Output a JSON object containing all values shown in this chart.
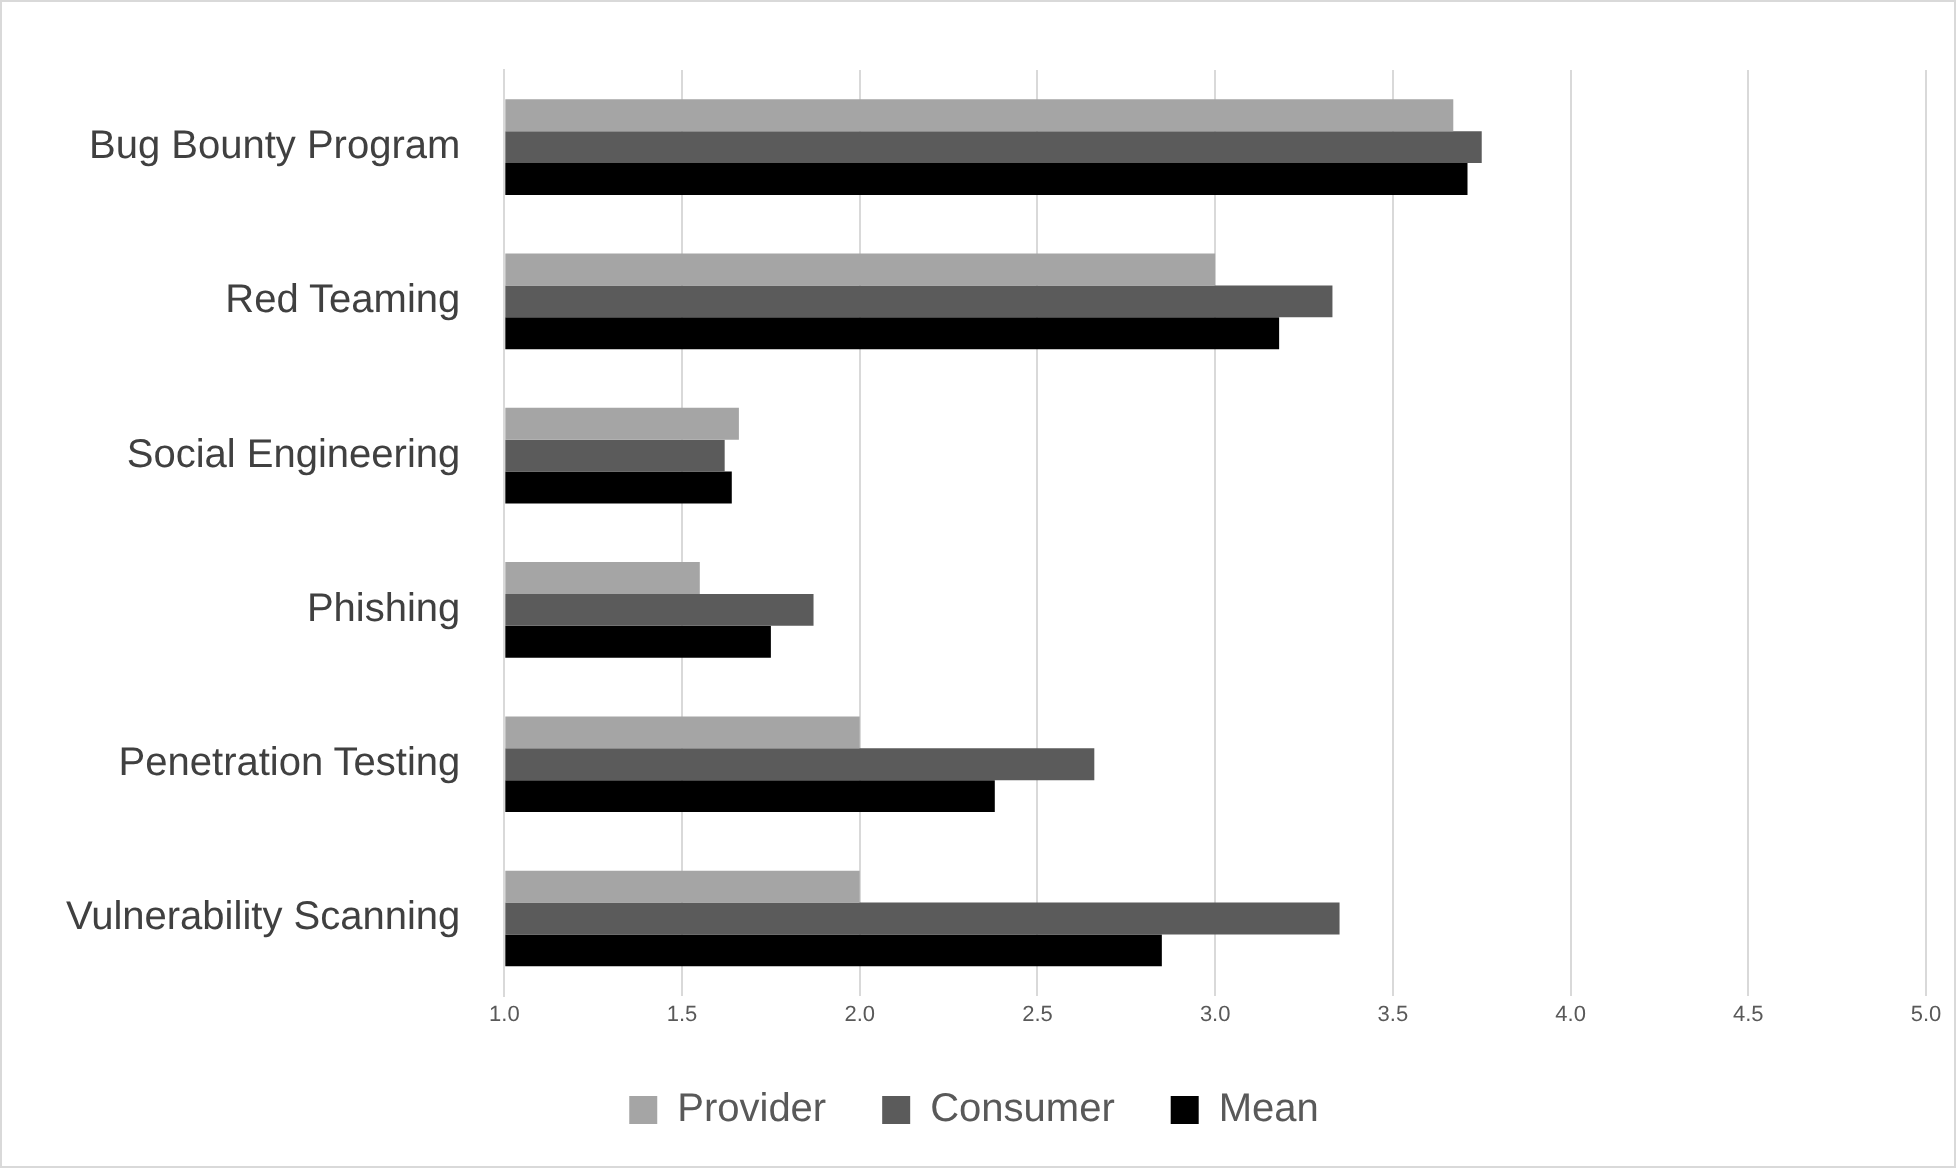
{
  "chart_data": {
    "type": "bar",
    "orientation": "horizontal",
    "categories": [
      "Bug Bounty Program",
      "Red Teaming",
      "Social Engineering",
      "Phishing",
      "Penetration Testing",
      "Vulnerability Scanning"
    ],
    "series": [
      {
        "name": "Provider",
        "color": "#a5a5a5",
        "values": [
          3.67,
          3.0,
          1.66,
          1.55,
          2.0,
          2.0
        ]
      },
      {
        "name": "Consumer",
        "color": "#5b5b5b",
        "values": [
          3.75,
          3.33,
          1.62,
          1.87,
          2.66,
          3.35
        ]
      },
      {
        "name": "Mean",
        "color": "#000000",
        "values": [
          3.71,
          3.18,
          1.64,
          1.75,
          2.38,
          2.85
        ]
      }
    ],
    "xlim": [
      1,
      5
    ],
    "xticks": [
      {
        "value": 1,
        "label": "1.0"
      },
      {
        "value": 1.5,
        "label": "1.5"
      },
      {
        "value": 2,
        "label": "2.0"
      },
      {
        "value": 2.5,
        "label": "2.5"
      },
      {
        "value": 3,
        "label": "3.0"
      },
      {
        "value": 3.5,
        "label": "3.5"
      },
      {
        "value": 4,
        "label": "4.0"
      },
      {
        "value": 4.5,
        "label": "4.5"
      },
      {
        "value": 5,
        "label": "5.0"
      }
    ],
    "grid": "x",
    "legend": "bottom"
  }
}
